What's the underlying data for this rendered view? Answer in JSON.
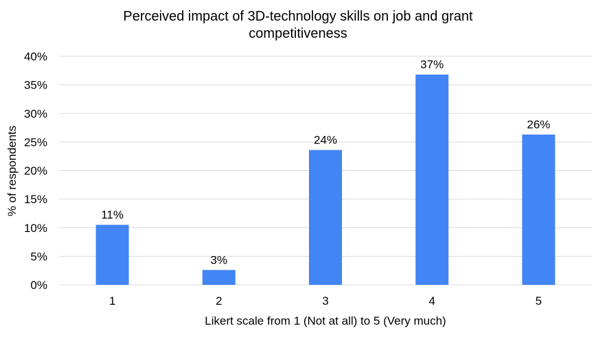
{
  "chart_data": {
    "type": "bar",
    "title_lines": [
      "Perceived impact of 3D-technology skills on job and grant",
      "competitiveness"
    ],
    "categories": [
      "1",
      "2",
      "3",
      "4",
      "5"
    ],
    "values": [
      10.5,
      2.6,
      23.6,
      36.8,
      26.3
    ],
    "data_labels": [
      "11%",
      "3%",
      "24%",
      "37%",
      "26%"
    ],
    "xlabel": "Likert scale from 1 (Not at all) to 5 (Very much)",
    "ylabel": "% of respondents",
    "ylim": [
      0,
      40
    ],
    "yticks": [
      0,
      5,
      10,
      15,
      20,
      25,
      30,
      35,
      40
    ],
    "ytick_labels": [
      "0%",
      "5%",
      "10%",
      "15%",
      "20%",
      "25%",
      "30%",
      "35%",
      "40%"
    ],
    "grid": true,
    "bar_color": "#4285f4",
    "grid_color": "#d9d9d9"
  }
}
